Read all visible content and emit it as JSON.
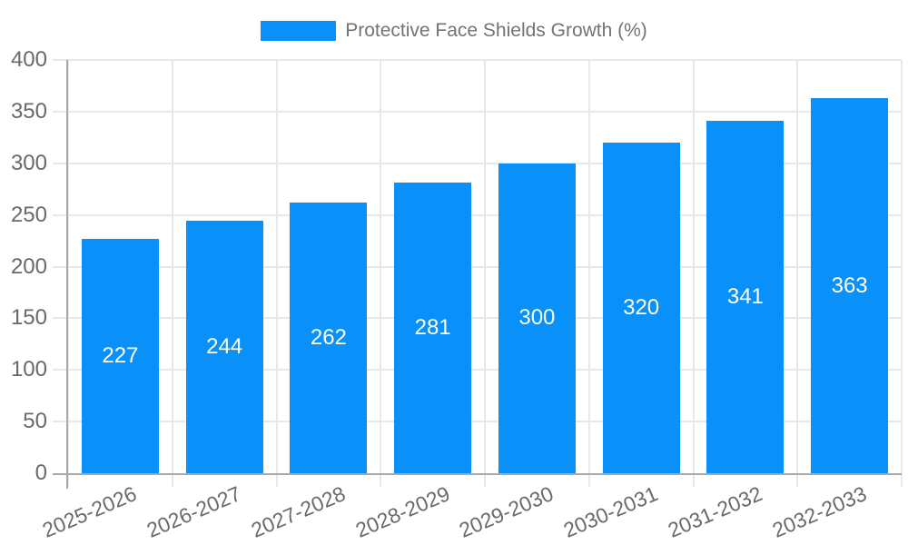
{
  "chart_data": {
    "type": "bar",
    "title": "",
    "legend_label": "Protective Face Shields Growth (%)",
    "legend_position": "top-center",
    "categories": [
      "2025-2026",
      "2026-2027",
      "2027-2028",
      "2028-2029",
      "2029-2030",
      "2030-2031",
      "2031-2032",
      "2032-2033"
    ],
    "values": [
      227,
      244,
      262,
      281,
      300,
      320,
      341,
      363
    ],
    "value_labels": [
      "227",
      "244",
      "262",
      "281",
      "300",
      "320",
      "341",
      "363"
    ],
    "value_label_position": "inside-middle",
    "xlabel": "",
    "ylabel": "",
    "ylim": [
      0,
      400
    ],
    "yticks": [
      0,
      50,
      100,
      150,
      200,
      250,
      300,
      350,
      400
    ],
    "grid": "both",
    "x_tick_rotation_deg": -23
  },
  "colors": {
    "bar": "#0990f9",
    "grid": "#e8e8e8",
    "axis": "#a8a8a8",
    "tick_text": "#696969",
    "legend_text": "#737373",
    "value_label_text": "#ffffff",
    "background": "#ffffff"
  }
}
